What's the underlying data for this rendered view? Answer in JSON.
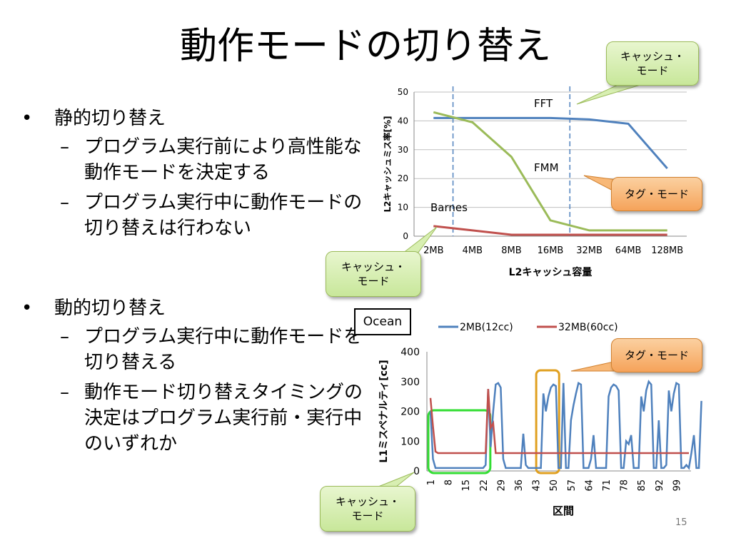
{
  "title": "動作モードの切り替え",
  "bullets": [
    {
      "text": "静的切り替え",
      "subs": [
        "プログラム実行前により高性能な動作モードを決定する",
        "プログラム実行中に動作モードの切り替えは行わない"
      ]
    },
    {
      "text": "動的切り替え",
      "subs": [
        "プログラム実行中に動作モードを切り替える",
        "動作モード切り替えタイミングの決定はプログラム実行前・実行中のいずれか"
      ]
    }
  ],
  "callouts": {
    "cache_top": "キャッシュ・\nモード",
    "tag_top": "タグ・モード",
    "cache_mid": "キャッシュ・\nモード",
    "tag_bottom": "タグ・モード",
    "cache_bottom": "キャッシュ・\nモード"
  },
  "ocean_label": "Ocean",
  "page_number": "15",
  "colors": {
    "blue": "#4f81bd",
    "red": "#c0504d",
    "green": "#9bbb59",
    "highlight_green": "#33dd33",
    "highlight_orange": "#e0a020"
  },
  "chart_data": [
    {
      "type": "line",
      "categories": [
        "2MB",
        "4MB",
        "8MB",
        "16MB",
        "32MB",
        "64MB",
        "128MB"
      ],
      "xlabel": "L2キャッシュ容量",
      "ylabel": "L2キャッシュミス率[%]",
      "ylim": [
        0,
        50
      ],
      "yticks": [
        0,
        10,
        20,
        30,
        40,
        50
      ],
      "grid": true,
      "series": [
        {
          "name": "FFT",
          "color": "#4f81bd",
          "values": [
            41,
            41,
            41,
            41,
            40.5,
            39,
            23.5
          ]
        },
        {
          "name": "FMM",
          "color": "#9bbb59",
          "values": [
            43,
            39.5,
            27.5,
            5.5,
            2,
            2,
            2
          ]
        },
        {
          "name": "Barnes",
          "color": "#c0504d",
          "values": [
            3.5,
            2,
            0.5,
            0.5,
            0.5,
            0.5,
            0.5
          ]
        }
      ],
      "series_labels": [
        "FFT",
        "FMM",
        "Barnes"
      ]
    },
    {
      "type": "line",
      "xlabel": "区間",
      "ylabel": "L1ミスペナルティ[cc]",
      "ylim": [
        0,
        400
      ],
      "yticks": [
        0,
        100,
        200,
        300,
        400
      ],
      "xticks": [
        "1",
        "8",
        "15",
        "22",
        "29",
        "36",
        "43",
        "50",
        "57",
        "64",
        "71",
        "78",
        "85",
        "92",
        "99"
      ],
      "legend_position": "top",
      "series": [
        {
          "name": "2MB(12cc)",
          "color": "#4f81bd",
          "values": [
            200,
            40,
            10,
            10,
            10,
            10,
            10,
            10,
            10,
            10,
            10,
            10,
            10,
            10,
            10,
            10,
            10,
            10,
            10,
            10,
            10,
            10,
            20,
            275,
            80,
            200,
            290,
            295,
            280,
            40,
            10,
            10,
            10,
            10,
            10,
            10,
            10,
            125,
            20,
            10,
            10,
            10,
            10,
            10,
            10,
            260,
            200,
            250,
            280,
            290,
            285,
            10,
            10,
            295,
            10,
            10,
            170,
            220,
            260,
            295,
            290,
            10,
            10,
            10,
            40,
            120,
            10,
            10,
            10,
            10,
            10,
            250,
            280,
            290,
            285,
            270,
            10,
            10,
            100,
            90,
            120,
            10,
            10,
            10,
            250,
            200,
            270,
            300,
            290,
            10,
            10,
            170,
            10,
            10,
            20,
            270,
            200,
            260,
            295,
            290,
            10,
            10,
            20,
            10,
            60,
            120,
            10,
            10,
            235
          ]
        },
        {
          "name": "32MB(60cc)",
          "color": "#c0504d",
          "values": [
            245,
            150,
            65,
            60,
            60,
            60,
            60,
            60,
            60,
            60,
            60,
            60,
            60,
            60,
            60,
            60,
            60,
            60,
            60,
            60,
            60,
            60,
            60,
            275,
            145,
            160,
            60,
            60
          ]
        }
      ]
    }
  ]
}
